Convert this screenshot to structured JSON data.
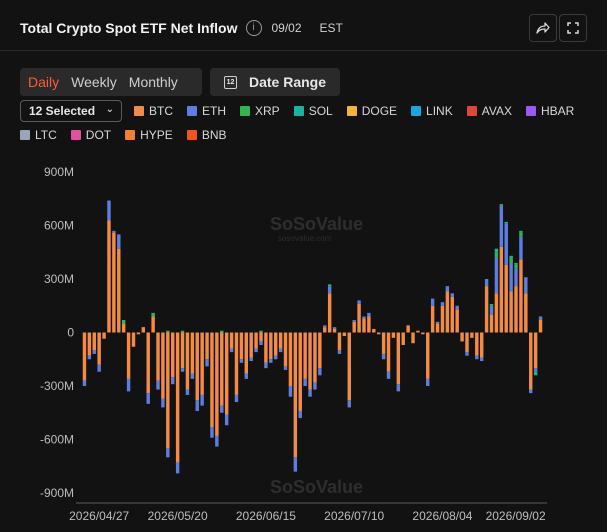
{
  "header": {
    "title": "Total Crypto Spot ETF Net Inflow",
    "date": "09/02",
    "timezone": "EST",
    "info_icon": "info-icon",
    "share_icon": "share-icon",
    "expand_icon": "expand-icon"
  },
  "controls": {
    "period_tabs": [
      {
        "label": "Daily",
        "active": true
      },
      {
        "label": "Weekly",
        "active": false
      },
      {
        "label": "Monthly",
        "active": false
      }
    ],
    "date_range_label": "Date Range",
    "calendar_icon_text": "12",
    "select_label": "12 Selected"
  },
  "colors": {
    "accent": "#ff5b36",
    "BTC": "#f28c45",
    "ETH": "#5b7fe0",
    "XRP": "#2fb551",
    "SOL": "#19b3a1",
    "DOGE": "#f2b43a",
    "LINK": "#19a7d9",
    "AVAX": "#e2453a",
    "HBAR": "#9b59f0",
    "LTC": "#9aa5b8",
    "DOT": "#e54fa0",
    "HYPE": "#f28032",
    "BNB": "#f2541c"
  },
  "watermark": {
    "name": "SoSoValue",
    "site": "sosovalue.com"
  },
  "chart_data": {
    "type": "bar",
    "stacked": true,
    "title": "Total Crypto Spot ETF Net Inflow",
    "y_unit": "M",
    "ylim": [
      -900,
      900
    ],
    "y_ticks": [
      {
        "value": 900,
        "label": "900M"
      },
      {
        "value": 600,
        "label": "600M"
      },
      {
        "value": 300,
        "label": "300M"
      },
      {
        "value": 0,
        "label": "0"
      },
      {
        "value": -300,
        "label": "-300M"
      },
      {
        "value": -600,
        "label": "-600M"
      },
      {
        "value": -900,
        "label": "-900M"
      }
    ],
    "x_tick_labels": [
      {
        "index": 3,
        "label": "2026/04/27"
      },
      {
        "index": 19,
        "label": "2026/05/20"
      },
      {
        "index": 37,
        "label": "2026/06/15"
      },
      {
        "index": 55,
        "label": "2026/07/10"
      },
      {
        "index": 73,
        "label": "2026/08/04"
      },
      {
        "index": 92,
        "label": "2026/09/02"
      }
    ],
    "legend": [
      "BTC",
      "ETH",
      "XRP",
      "SOL",
      "DOGE",
      "LINK",
      "AVAX",
      "HBAR",
      "LTC",
      "DOT",
      "HYPE",
      "BNB"
    ],
    "grid": false,
    "series": [
      {
        "name": "BTC",
        "values": [
          -270,
          -130,
          -100,
          -180,
          -35,
          630,
          560,
          470,
          50,
          -260,
          -80,
          -10,
          30,
          -340,
          90,
          -270,
          -370,
          -650,
          -250,
          -730,
          -200,
          -320,
          -230,
          -380,
          -350,
          -150,
          -530,
          -580,
          -410,
          -460,
          -90,
          -350,
          -150,
          -230,
          -140,
          -90,
          -50,
          -170,
          -150,
          -130,
          -90,
          -190,
          -300,
          -700,
          -440,
          -260,
          -320,
          -280,
          -200,
          30,
          220,
          20,
          -100,
          -20,
          -380,
          60,
          160,
          80,
          90,
          20,
          -10,
          -120,
          -220,
          -30,
          -290,
          -70,
          40,
          -60,
          10,
          -10,
          -260,
          150,
          50,
          150,
          230,
          200,
          130,
          -50,
          -110,
          -30,
          -130,
          -140,
          260,
          100,
          220,
          480,
          380,
          230,
          260,
          410,
          220,
          -320,
          -200,
          70
        ]
      },
      {
        "name": "ETH",
        "values": [
          -30,
          -20,
          -20,
          -40,
          0,
          110,
          10,
          80,
          0,
          -70,
          0,
          0,
          0,
          -60,
          0,
          -50,
          -50,
          -50,
          -40,
          -60,
          -20,
          -30,
          -30,
          -60,
          -60,
          -40,
          -60,
          -60,
          -40,
          -60,
          -20,
          -40,
          -20,
          -30,
          -20,
          -20,
          -20,
          -30,
          -20,
          -20,
          -20,
          -20,
          -60,
          -80,
          -40,
          -40,
          -40,
          -40,
          -40,
          10,
          40,
          10,
          -20,
          0,
          -40,
          10,
          20,
          10,
          20,
          0,
          0,
          -30,
          -40,
          0,
          -40,
          0,
          0,
          0,
          0,
          0,
          -40,
          40,
          10,
          20,
          30,
          20,
          20,
          0,
          -20,
          0,
          -20,
          -20,
          40,
          50,
          200,
          230,
          230,
          160,
          100,
          130,
          90,
          -20,
          -20,
          20
        ]
      },
      {
        "name": "XRP",
        "values": [
          0,
          0,
          0,
          0,
          0,
          0,
          0,
          0,
          20,
          0,
          0,
          0,
          0,
          0,
          20,
          0,
          0,
          10,
          0,
          0,
          10,
          0,
          0,
          0,
          0,
          0,
          0,
          0,
          10,
          0,
          0,
          0,
          0,
          0,
          0,
          0,
          10,
          0,
          0,
          0,
          0,
          0,
          0,
          0,
          0,
          0,
          0,
          0,
          0,
          0,
          10,
          0,
          0,
          0,
          0,
          0,
          0,
          0,
          0,
          0,
          0,
          0,
          0,
          0,
          0,
          0,
          0,
          0,
          0,
          0,
          0,
          0,
          0,
          0,
          0,
          0,
          0,
          0,
          0,
          0,
          0,
          0,
          0,
          10,
          30,
          10,
          0,
          30,
          20,
          20,
          0,
          0,
          0,
          0
        ]
      },
      {
        "name": "SOL",
        "values": [
          0,
          0,
          0,
          0,
          0,
          0,
          0,
          0,
          0,
          0,
          0,
          0,
          0,
          0,
          0,
          0,
          0,
          0,
          0,
          0,
          0,
          0,
          0,
          0,
          0,
          0,
          0,
          0,
          0,
          0,
          0,
          0,
          0,
          0,
          0,
          0,
          0,
          0,
          0,
          0,
          0,
          0,
          0,
          0,
          0,
          0,
          0,
          0,
          0,
          0,
          0,
          0,
          0,
          0,
          0,
          0,
          0,
          0,
          0,
          0,
          0,
          0,
          0,
          0,
          0,
          0,
          0,
          0,
          0,
          0,
          0,
          0,
          0,
          0,
          0,
          0,
          0,
          0,
          0,
          0,
          0,
          0,
          0,
          0,
          20,
          0,
          10,
          10,
          10,
          10,
          0,
          0,
          -20,
          0
        ]
      },
      {
        "name": "DOGE",
        "values": [
          0,
          0,
          0,
          0,
          0,
          0,
          0,
          0,
          0,
          0,
          0,
          0,
          0,
          0,
          0,
          0,
          0,
          0,
          0,
          0,
          0,
          0,
          0,
          0,
          0,
          0,
          0,
          0,
          0,
          0,
          0,
          0,
          0,
          0,
          0,
          0,
          0,
          0,
          0,
          0,
          0,
          0,
          0,
          0,
          0,
          0,
          0,
          0,
          0,
          0,
          0,
          0,
          0,
          0,
          0,
          0,
          0,
          0,
          0,
          0,
          0,
          0,
          0,
          0,
          0,
          0,
          0,
          0,
          0,
          0,
          0,
          0,
          0,
          0,
          0,
          0,
          0,
          0,
          0,
          0,
          0,
          0,
          0,
          0,
          0,
          0,
          0,
          0,
          0,
          0,
          0,
          0,
          0,
          0
        ]
      },
      {
        "name": "LINK",
        "values": [
          0,
          0,
          0,
          0,
          0,
          0,
          0,
          0,
          0,
          0,
          0,
          0,
          0,
          0,
          0,
          0,
          0,
          0,
          0,
          0,
          0,
          0,
          0,
          0,
          0,
          0,
          0,
          0,
          0,
          0,
          0,
          0,
          0,
          0,
          0,
          0,
          0,
          0,
          0,
          0,
          0,
          0,
          0,
          0,
          0,
          0,
          0,
          0,
          0,
          0,
          0,
          0,
          0,
          0,
          0,
          0,
          0,
          0,
          0,
          0,
          0,
          0,
          0,
          0,
          0,
          0,
          0,
          0,
          0,
          0,
          0,
          0,
          0,
          0,
          0,
          0,
          0,
          0,
          0,
          0,
          0,
          0,
          0,
          0,
          0,
          0,
          0,
          0,
          0,
          0,
          0,
          0,
          0,
          0
        ]
      },
      {
        "name": "AVAX",
        "values": [
          0,
          0,
          0,
          0,
          0,
          0,
          0,
          0,
          0,
          0,
          0,
          0,
          0,
          0,
          0,
          0,
          0,
          0,
          0,
          0,
          0,
          0,
          0,
          0,
          0,
          0,
          0,
          0,
          0,
          0,
          0,
          0,
          0,
          0,
          0,
          0,
          0,
          0,
          0,
          0,
          0,
          0,
          0,
          0,
          0,
          0,
          0,
          0,
          0,
          0,
          0,
          0,
          0,
          0,
          0,
          0,
          0,
          0,
          0,
          0,
          0,
          0,
          0,
          0,
          0,
          0,
          0,
          0,
          0,
          0,
          0,
          0,
          0,
          0,
          0,
          0,
          0,
          0,
          0,
          0,
          0,
          0,
          0,
          0,
          0,
          0,
          0,
          0,
          0,
          0,
          0,
          0,
          0,
          0
        ]
      },
      {
        "name": "HBAR",
        "values": [
          0,
          0,
          0,
          0,
          0,
          0,
          0,
          0,
          0,
          0,
          0,
          0,
          0,
          0,
          0,
          0,
          0,
          0,
          0,
          0,
          0,
          0,
          0,
          0,
          0,
          0,
          0,
          0,
          0,
          0,
          0,
          0,
          0,
          0,
          0,
          0,
          0,
          0,
          0,
          0,
          0,
          0,
          0,
          0,
          0,
          0,
          0,
          0,
          0,
          0,
          0,
          0,
          0,
          0,
          0,
          0,
          0,
          0,
          0,
          0,
          0,
          0,
          0,
          0,
          0,
          0,
          0,
          0,
          0,
          0,
          0,
          0,
          0,
          0,
          0,
          0,
          0,
          0,
          0,
          0,
          0,
          0,
          0,
          0,
          0,
          0,
          0,
          0,
          0,
          0,
          0,
          0,
          0,
          0
        ]
      },
      {
        "name": "LTC",
        "values": [
          0,
          0,
          0,
          0,
          0,
          0,
          0,
          0,
          0,
          0,
          0,
          0,
          0,
          0,
          0,
          0,
          0,
          0,
          0,
          0,
          0,
          0,
          0,
          0,
          0,
          0,
          0,
          0,
          0,
          0,
          0,
          0,
          0,
          0,
          0,
          0,
          0,
          0,
          0,
          0,
          0,
          0,
          0,
          0,
          0,
          0,
          0,
          0,
          0,
          0,
          0,
          0,
          0,
          0,
          0,
          0,
          0,
          0,
          0,
          0,
          0,
          0,
          0,
          0,
          0,
          0,
          0,
          0,
          0,
          0,
          0,
          0,
          0,
          0,
          0,
          0,
          0,
          0,
          0,
          0,
          0,
          0,
          0,
          0,
          0,
          0,
          0,
          0,
          0,
          0,
          0,
          0,
          0,
          0
        ]
      },
      {
        "name": "DOT",
        "values": [
          0,
          0,
          0,
          0,
          0,
          0,
          0,
          0,
          0,
          0,
          0,
          0,
          0,
          0,
          0,
          0,
          0,
          0,
          0,
          0,
          0,
          0,
          0,
          0,
          0,
          0,
          0,
          0,
          0,
          0,
          0,
          0,
          0,
          0,
          0,
          0,
          0,
          0,
          0,
          0,
          0,
          0,
          0,
          0,
          0,
          0,
          0,
          0,
          0,
          0,
          0,
          0,
          0,
          0,
          0,
          0,
          0,
          0,
          0,
          0,
          0,
          0,
          0,
          0,
          0,
          0,
          0,
          0,
          0,
          0,
          0,
          0,
          0,
          0,
          0,
          0,
          0,
          0,
          0,
          0,
          0,
          0,
          0,
          0,
          0,
          0,
          0,
          0,
          0,
          0,
          0,
          0,
          0,
          0
        ]
      },
      {
        "name": "HYPE",
        "values": [
          0,
          0,
          0,
          0,
          0,
          0,
          0,
          0,
          0,
          0,
          0,
          0,
          0,
          0,
          0,
          0,
          0,
          0,
          0,
          0,
          0,
          0,
          0,
          0,
          0,
          0,
          0,
          0,
          0,
          0,
          0,
          0,
          0,
          0,
          0,
          0,
          0,
          0,
          0,
          0,
          0,
          0,
          0,
          0,
          0,
          0,
          0,
          0,
          0,
          0,
          0,
          0,
          0,
          0,
          0,
          0,
          0,
          0,
          0,
          0,
          0,
          0,
          0,
          0,
          0,
          0,
          0,
          0,
          0,
          0,
          0,
          0,
          0,
          0,
          0,
          0,
          0,
          0,
          0,
          0,
          0,
          0,
          0,
          0,
          0,
          0,
          0,
          0,
          0,
          0,
          0,
          0,
          0,
          0
        ]
      },
      {
        "name": "BNB",
        "values": [
          0,
          0,
          0,
          0,
          0,
          0,
          0,
          0,
          0,
          0,
          0,
          0,
          0,
          0,
          0,
          0,
          0,
          0,
          0,
          0,
          0,
          0,
          0,
          0,
          0,
          0,
          0,
          0,
          0,
          0,
          0,
          0,
          0,
          0,
          0,
          0,
          0,
          0,
          0,
          0,
          0,
          0,
          0,
          0,
          0,
          0,
          0,
          0,
          0,
          0,
          0,
          0,
          0,
          0,
          0,
          0,
          0,
          0,
          0,
          0,
          0,
          0,
          0,
          0,
          0,
          0,
          0,
          0,
          0,
          0,
          0,
          0,
          0,
          0,
          0,
          0,
          0,
          0,
          0,
          0,
          0,
          0,
          0,
          0,
          0,
          0,
          0,
          0,
          0,
          0,
          0,
          0,
          0,
          0
        ]
      }
    ]
  }
}
